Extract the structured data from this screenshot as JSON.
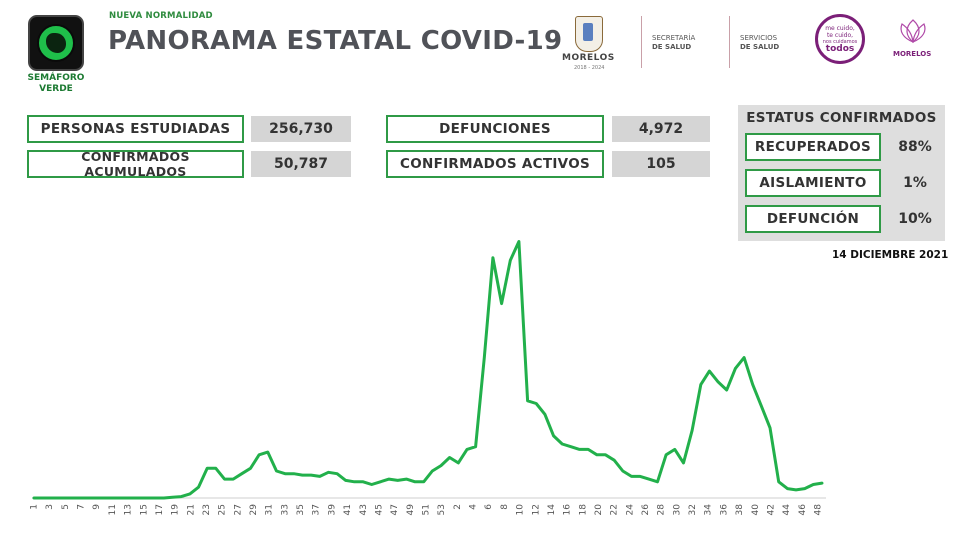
{
  "header": {
    "semaforo_line1": "SEMÁFORO",
    "semaforo_line2": "VERDE",
    "kicker": "NUEVA NORMALIDAD",
    "title": "PANORAMA ESTATAL COVID-19",
    "gov_name": "MORELOS",
    "gov_years": "2018 - 2024",
    "dept1_line1": "SECRETARÍA",
    "dept1_line2": "DE SALUD",
    "dept2_line1": "SERVICIOS",
    "dept2_line2": "DE SALUD",
    "campaign_line1": "me cuido,",
    "campaign_line2": "te cuido,",
    "campaign_line3": "nos cuidamos",
    "campaign_line4": "todos",
    "brand_name": "MORELOS"
  },
  "stats": {
    "estudiadas_label": "PERSONAS ESTUDIADAS",
    "estudiadas_value": "256,730",
    "confirmados_label": "CONFIRMADOS ACUMULADOS",
    "confirmados_value": "50,787",
    "defunciones_label": "DEFUNCIONES",
    "defunciones_value": "4,972",
    "activos_label": "CONFIRMADOS ACTIVOS",
    "activos_value": "105"
  },
  "status": {
    "title": "ESTATUS CONFIRMADOS",
    "recuperados_label": "RECUPERADOS",
    "recuperados_value": "88%",
    "aislamiento_label": "AISLAMIENTO",
    "aislamiento_value": "1%",
    "defuncion_label": "DEFUNCIÓN",
    "defuncion_value": "10%"
  },
  "date": "14 DICIEMBRE 2021",
  "colors": {
    "accent_green": "#2f9a46",
    "line_green": "#22b04b",
    "value_gray": "#d5d5d5",
    "title_gray": "#505258"
  },
  "chart_data": {
    "type": "line",
    "title": "",
    "xlabel": "",
    "ylabel": "",
    "x_labels": [
      "1",
      "3",
      "5",
      "7",
      "9",
      "11",
      "13",
      "15",
      "17",
      "19",
      "21",
      "23",
      "25",
      "27",
      "29",
      "31",
      "33",
      "35",
      "37",
      "39",
      "41",
      "43",
      "45",
      "47",
      "49",
      "51",
      "53",
      "2",
      "4",
      "6",
      "8",
      "10",
      "12",
      "14",
      "16",
      "18",
      "20",
      "22",
      "24",
      "26",
      "28",
      "30",
      "32",
      "34",
      "36",
      "38",
      "40",
      "42",
      "44",
      "46",
      "48"
    ],
    "ylim": [
      0,
      100
    ],
    "grid": false,
    "series": [
      {
        "values": [
          0,
          0,
          0,
          0,
          0,
          0,
          0,
          0,
          0,
          0,
          0,
          0,
          0,
          0,
          0,
          0,
          0.3,
          0.5,
          1.5,
          4,
          11,
          11,
          7,
          7,
          9,
          11,
          16,
          17,
          10,
          9,
          9,
          8.5,
          8.5,
          8,
          9.5,
          9,
          6.5,
          6,
          6,
          5,
          6,
          7,
          6.5,
          7,
          6,
          6,
          10,
          12,
          15,
          13,
          18,
          19,
          52,
          89,
          72,
          88,
          95,
          36,
          35,
          31,
          23,
          20,
          19,
          18,
          18,
          16,
          16,
          14,
          10,
          8,
          8,
          7,
          6,
          16,
          18,
          13,
          25,
          42,
          47,
          43,
          40,
          48,
          52,
          42,
          34,
          26,
          6,
          3.5,
          3,
          3.5,
          5,
          5.5
        ]
      }
    ]
  }
}
